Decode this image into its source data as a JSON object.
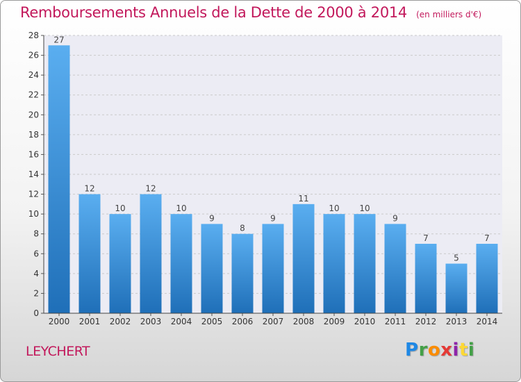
{
  "header": {
    "title": "Remboursements Annuels de la Dette de 2000 à 2014",
    "subtitle": "(en milliers d'€)"
  },
  "footer": {
    "town": "LEYCHERT",
    "logo_letters": [
      "P",
      "r",
      "o",
      "x",
      "i",
      "t",
      "i"
    ],
    "logo_colors": [
      "#1e88e5",
      "#43a047",
      "#fb8c00",
      "#e53935",
      "#8e24aa",
      "#fdd835",
      "#43a047"
    ]
  },
  "chart_data": {
    "type": "bar",
    "categories": [
      "2000",
      "2001",
      "2002",
      "2003",
      "2004",
      "2005",
      "2006",
      "2007",
      "2008",
      "2009",
      "2010",
      "2011",
      "2012",
      "2013",
      "2014"
    ],
    "values": [
      27,
      12,
      10,
      12,
      10,
      9,
      8,
      9,
      11,
      10,
      10,
      9,
      7,
      5,
      7
    ],
    "ylim": [
      0,
      28
    ],
    "yticks": [
      0,
      2,
      4,
      6,
      8,
      10,
      12,
      14,
      16,
      18,
      20,
      22,
      24,
      26,
      28
    ],
    "grid": true,
    "bar_color_top": "#5aaef0",
    "bar_color_bottom": "#1f6fb8"
  }
}
